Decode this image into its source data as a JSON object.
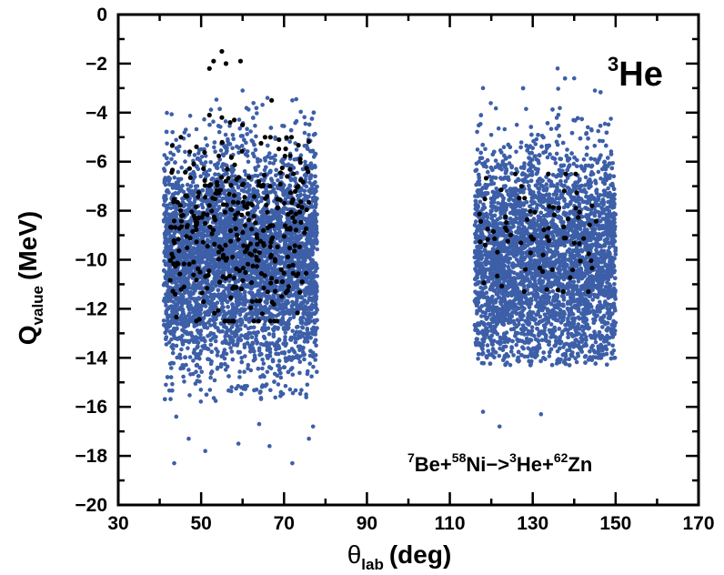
{
  "chart_data": {
    "type": "scatter",
    "title": "",
    "xlabel": {
      "symbol": "θ",
      "sub": "lab",
      "unit": "(deg)"
    },
    "ylabel": {
      "symbol": "Q",
      "sub": "value",
      "unit": "(MeV)"
    },
    "xlim": [
      30,
      170
    ],
    "ylim": [
      -20,
      0
    ],
    "x_ticks": [
      30,
      50,
      70,
      90,
      110,
      130,
      150,
      170
    ],
    "y_ticks": [
      0,
      -2,
      -4,
      -6,
      -8,
      -10,
      -12,
      -14,
      -16,
      -18,
      -20
    ],
    "grid": false,
    "annotations": {
      "particle": {
        "sup": "3",
        "text": "He"
      },
      "reaction": [
        {
          "sup": "7",
          "text": "Be+"
        },
        {
          "sup": "58",
          "text": "Ni−>"
        },
        {
          "sup": "3",
          "text": "He+"
        },
        {
          "sup": "62",
          "text": "Zn"
        }
      ]
    },
    "colors": {
      "simulation": "#3d5fa8",
      "data": "#000000"
    },
    "series": [
      {
        "style": "blue dots",
        "description_clusters": [
          {
            "x_range": [
              41,
              78
            ],
            "y_center": -10,
            "y_range": [
              -18.3,
              -3
            ]
          },
          {
            "x_range": [
              116,
              150
            ],
            "y_center": -10,
            "y_range": [
              -16.8,
              -2.2
            ]
          }
        ],
        "outliers": [
          [
            43.5,
            -18.3
          ],
          [
            47,
            -17.3
          ],
          [
            51,
            -17.8
          ],
          [
            59,
            -17.5
          ],
          [
            64,
            -16.7
          ],
          [
            66.5,
            -17.6
          ],
          [
            72,
            -18.3
          ],
          [
            76,
            -17.3
          ],
          [
            77,
            -16.8
          ],
          [
            44,
            -16.4
          ],
          [
            132,
            -16.3
          ],
          [
            122,
            -16.8
          ],
          [
            118,
            -16.2
          ],
          [
            136,
            -2.2
          ],
          [
            118,
            -3.0
          ],
          [
            140,
            -2.6
          ],
          [
            145,
            -3.1
          ],
          [
            60,
            -3.1
          ],
          [
            66,
            -3.4
          ],
          [
            72,
            -3.5
          ]
        ]
      },
      {
        "style": "black dots",
        "points": [
          [
            52,
            -2.2
          ],
          [
            53,
            -1.9
          ],
          [
            55,
            -1.5
          ],
          [
            56,
            -2.0
          ],
          [
            59.5,
            -1.9
          ],
          [
            67,
            -3.5
          ],
          [
            55,
            -4.2
          ],
          [
            57,
            -4.4
          ],
          [
            58,
            -4.3
          ],
          [
            52,
            -4.1
          ],
          [
            60,
            -4.5
          ]
        ],
        "description_clusters": [
          {
            "x_range": [
              42,
              76
            ],
            "y_range": [
              -12.5,
              -5
            ],
            "count": 330
          },
          {
            "x_range": [
              117,
              147
            ],
            "y_range": [
              -11.3,
              -6.5
            ],
            "count": 75
          }
        ]
      }
    ]
  }
}
